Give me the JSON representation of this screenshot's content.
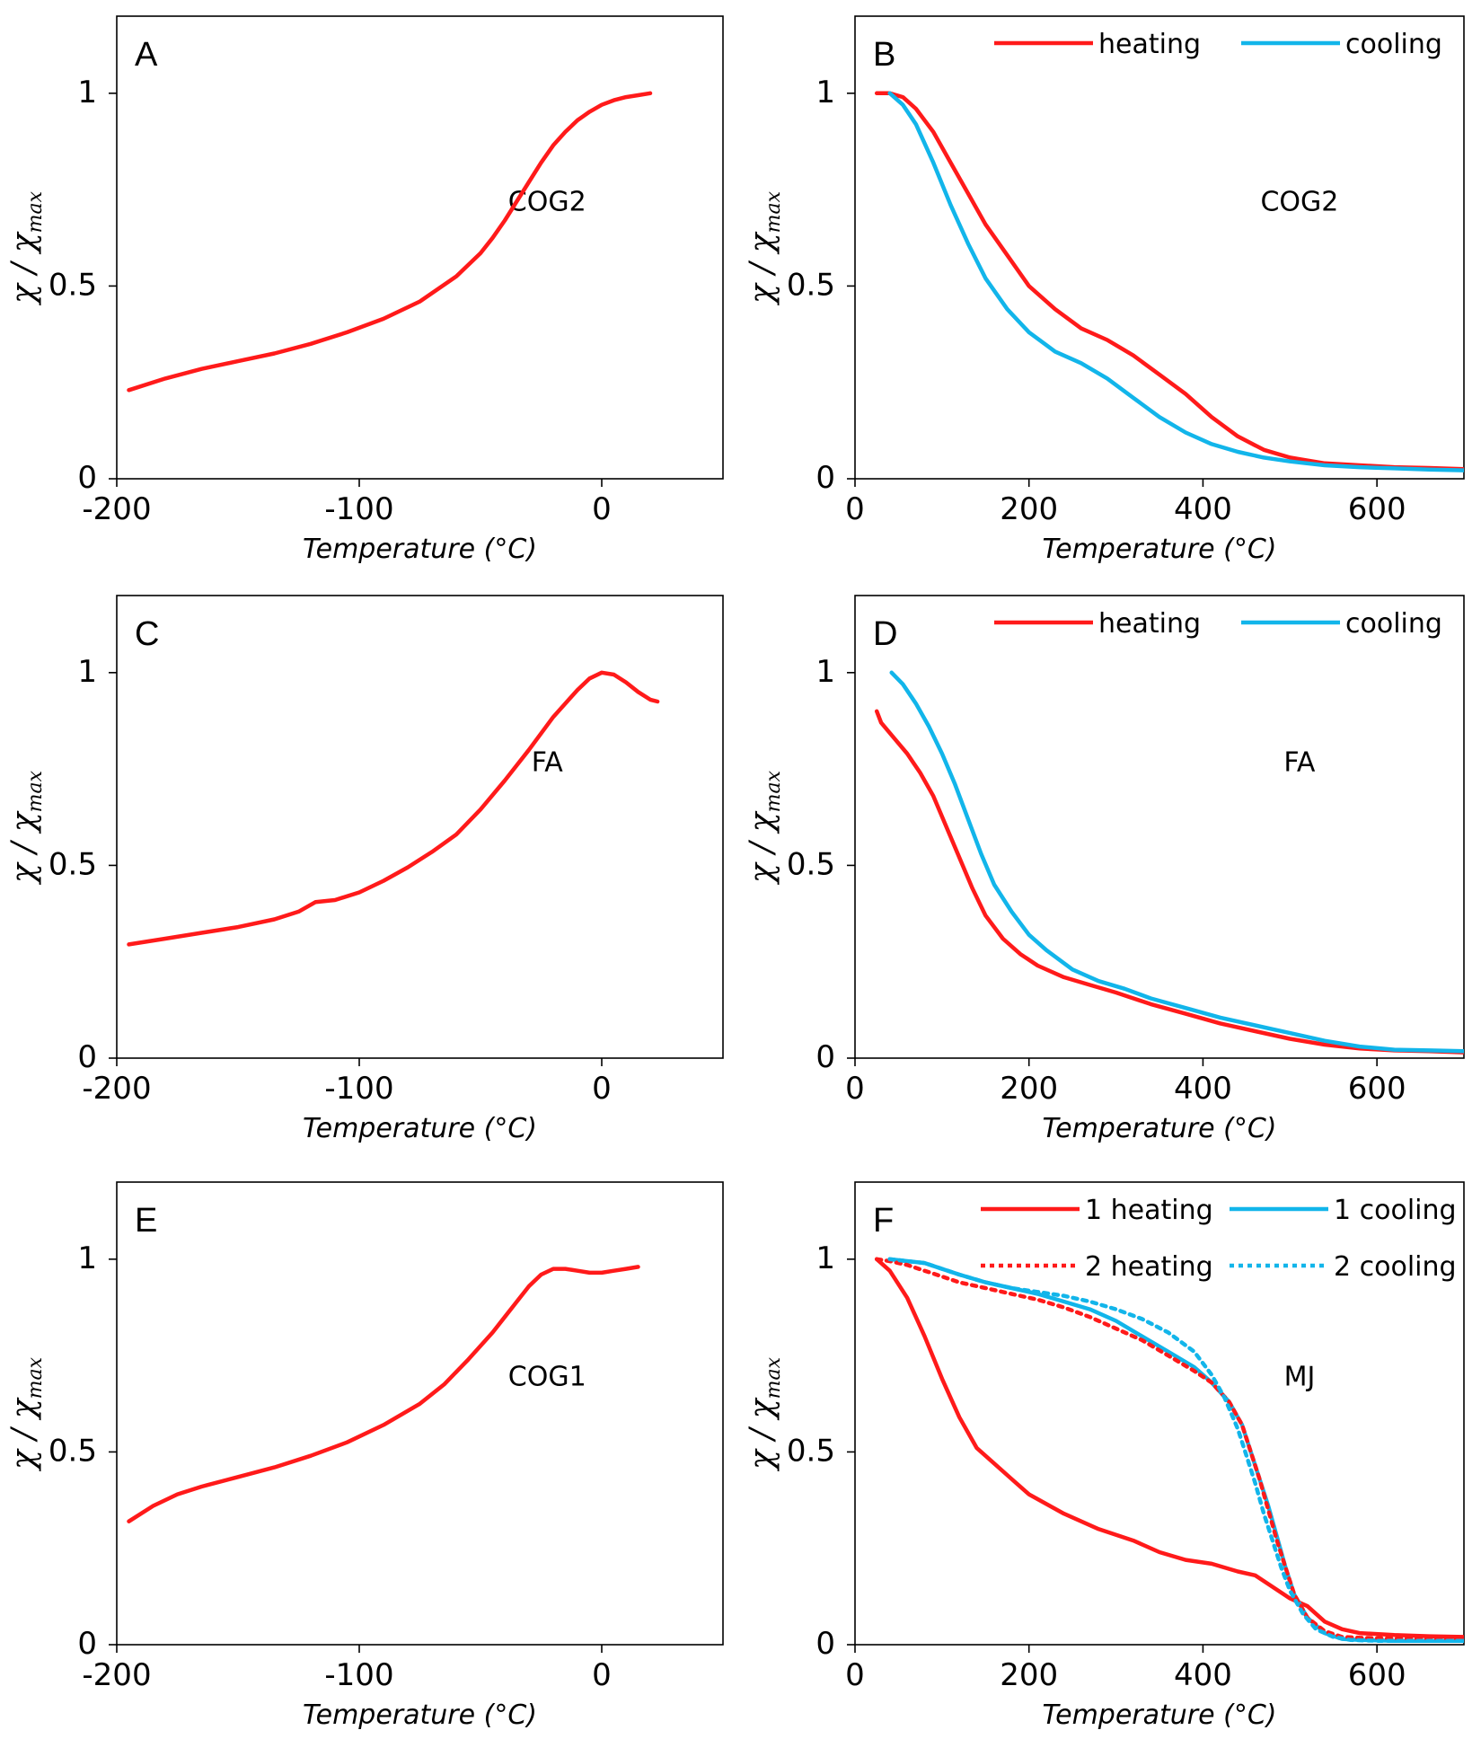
{
  "colors": {
    "heating": "#ff1a1a",
    "cooling": "#12b5ea"
  },
  "chart_data": [
    {
      "id": "A",
      "type": "line",
      "letter": "A",
      "annotation": "COG2",
      "xlabel": "Temperature (°C)",
      "ylabel": "χ / χ",
      "ylabel_sub": "max",
      "xlim": [
        -200,
        50
      ],
      "ylim": [
        0,
        1.2
      ],
      "xticks": [
        -200,
        -100,
        0
      ],
      "xtick_labels": [
        "-200",
        "-100",
        "0"
      ],
      "yticks": [
        0,
        0.5,
        1
      ],
      "ytick_labels": [
        "0",
        "0.5",
        "1"
      ],
      "legend": [],
      "series": [
        {
          "name": "heating",
          "color": "heating",
          "dash": false,
          "x": [
            -195,
            -180,
            -165,
            -150,
            -135,
            -120,
            -105,
            -90,
            -75,
            -60,
            -50,
            -45,
            -40,
            -35,
            -30,
            -25,
            -20,
            -15,
            -10,
            -5,
            0,
            5,
            10,
            15,
            20
          ],
          "y": [
            0.23,
            0.26,
            0.285,
            0.305,
            0.325,
            0.35,
            0.38,
            0.415,
            0.46,
            0.525,
            0.585,
            0.625,
            0.67,
            0.72,
            0.77,
            0.82,
            0.865,
            0.9,
            0.93,
            0.952,
            0.97,
            0.982,
            0.99,
            0.995,
            1.0
          ]
        }
      ]
    },
    {
      "id": "B",
      "type": "line",
      "letter": "B",
      "annotation": "COG2",
      "xlabel": "Temperature (°C)",
      "ylabel": "χ / χ",
      "ylabel_sub": "max",
      "xlim": [
        0,
        700
      ],
      "ylim": [
        0,
        1.2
      ],
      "xticks": [
        0,
        200,
        400,
        600
      ],
      "xtick_labels": [
        "0",
        "200",
        "400",
        "600"
      ],
      "yticks": [
        0,
        0.5,
        1
      ],
      "ytick_labels": [
        "0",
        "0.5",
        "1"
      ],
      "legend": [
        {
          "label": "heating",
          "color": "heating",
          "dash": false
        },
        {
          "label": "cooling",
          "color": "cooling",
          "dash": false
        }
      ],
      "series": [
        {
          "name": "heating",
          "color": "heating",
          "dash": false,
          "x": [
            25,
            40,
            55,
            70,
            90,
            110,
            130,
            150,
            175,
            200,
            230,
            260,
            290,
            320,
            350,
            380,
            410,
            440,
            470,
            500,
            540,
            580,
            620,
            660,
            700
          ],
          "y": [
            1.0,
            1.0,
            0.99,
            0.96,
            0.9,
            0.82,
            0.74,
            0.66,
            0.58,
            0.5,
            0.44,
            0.39,
            0.36,
            0.32,
            0.27,
            0.22,
            0.16,
            0.11,
            0.075,
            0.055,
            0.04,
            0.035,
            0.03,
            0.028,
            0.025
          ]
        },
        {
          "name": "cooling",
          "color": "cooling",
          "dash": false,
          "x": [
            40,
            55,
            70,
            90,
            110,
            130,
            150,
            175,
            200,
            230,
            260,
            290,
            320,
            350,
            380,
            410,
            440,
            470,
            500,
            540,
            580,
            620,
            660,
            700
          ],
          "y": [
            1.0,
            0.97,
            0.92,
            0.82,
            0.71,
            0.61,
            0.52,
            0.44,
            0.38,
            0.33,
            0.3,
            0.26,
            0.21,
            0.16,
            0.12,
            0.09,
            0.07,
            0.055,
            0.045,
            0.035,
            0.03,
            0.027,
            0.024,
            0.022
          ]
        }
      ]
    },
    {
      "id": "C",
      "type": "line",
      "letter": "C",
      "annotation": "FA",
      "xlabel": "Temperature (°C)",
      "ylabel": "χ / χ",
      "ylabel_sub": "max",
      "xlim": [
        -200,
        50
      ],
      "ylim": [
        0,
        1.2
      ],
      "xticks": [
        -200,
        -100,
        0
      ],
      "xtick_labels": [
        "-200",
        "-100",
        "0"
      ],
      "yticks": [
        0,
        0.5,
        1
      ],
      "ytick_labels": [
        "0",
        "0.5",
        "1"
      ],
      "legend": [],
      "series": [
        {
          "name": "heating",
          "color": "heating",
          "dash": false,
          "x": [
            -195,
            -180,
            -165,
            -150,
            -135,
            -125,
            -118,
            -110,
            -100,
            -90,
            -80,
            -70,
            -60,
            -50,
            -40,
            -30,
            -20,
            -10,
            -5,
            0,
            5,
            10,
            15,
            20,
            23
          ],
          "y": [
            0.295,
            0.31,
            0.325,
            0.34,
            0.36,
            0.38,
            0.405,
            0.41,
            0.43,
            0.46,
            0.495,
            0.535,
            0.58,
            0.645,
            0.72,
            0.8,
            0.885,
            0.955,
            0.985,
            1.0,
            0.995,
            0.975,
            0.95,
            0.93,
            0.925
          ]
        }
      ]
    },
    {
      "id": "D",
      "type": "line",
      "letter": "D",
      "annotation": "FA",
      "xlabel": "Temperature (°C)",
      "ylabel": "χ / χ",
      "ylabel_sub": "max",
      "xlim": [
        0,
        700
      ],
      "ylim": [
        0,
        1.2
      ],
      "xticks": [
        0,
        200,
        400,
        600
      ],
      "xtick_labels": [
        "0",
        "200",
        "400",
        "600"
      ],
      "yticks": [
        0,
        0.5,
        1
      ],
      "ytick_labels": [
        "0",
        "0.5",
        "1"
      ],
      "legend": [
        {
          "label": "heating",
          "color": "heating",
          "dash": false
        },
        {
          "label": "cooling",
          "color": "cooling",
          "dash": false
        }
      ],
      "series": [
        {
          "name": "heating",
          "color": "heating",
          "dash": false,
          "x": [
            25,
            30,
            45,
            60,
            75,
            90,
            105,
            120,
            135,
            150,
            170,
            190,
            210,
            240,
            270,
            300,
            340,
            380,
            420,
            460,
            500,
            540,
            580,
            620,
            660,
            700
          ],
          "y": [
            0.9,
            0.87,
            0.83,
            0.79,
            0.74,
            0.68,
            0.6,
            0.52,
            0.44,
            0.37,
            0.31,
            0.27,
            0.24,
            0.21,
            0.19,
            0.17,
            0.14,
            0.115,
            0.09,
            0.07,
            0.05,
            0.035,
            0.025,
            0.02,
            0.018,
            0.015
          ]
        },
        {
          "name": "cooling",
          "color": "cooling",
          "dash": false,
          "x": [
            42,
            55,
            70,
            85,
            100,
            115,
            130,
            145,
            160,
            180,
            200,
            220,
            250,
            280,
            310,
            340,
            380,
            420,
            460,
            500,
            540,
            580,
            620,
            660,
            700
          ],
          "y": [
            1.0,
            0.97,
            0.92,
            0.86,
            0.79,
            0.71,
            0.62,
            0.53,
            0.45,
            0.38,
            0.32,
            0.28,
            0.23,
            0.2,
            0.18,
            0.155,
            0.13,
            0.105,
            0.085,
            0.065,
            0.045,
            0.03,
            0.022,
            0.02,
            0.018
          ]
        }
      ]
    },
    {
      "id": "E",
      "type": "line",
      "letter": "E",
      "annotation": "COG1",
      "xlabel": "Temperature (°C)",
      "ylabel": "χ / χ",
      "ylabel_sub": "max",
      "xlim": [
        -200,
        50
      ],
      "ylim": [
        0,
        1.2
      ],
      "xticks": [
        -200,
        -100,
        0
      ],
      "xtick_labels": [
        "-200",
        "-100",
        "0"
      ],
      "yticks": [
        0,
        0.5,
        1
      ],
      "ytick_labels": [
        "0",
        "0.5",
        "1"
      ],
      "legend": [],
      "series": [
        {
          "name": "heating",
          "color": "heating",
          "dash": false,
          "x": [
            -195,
            -185,
            -175,
            -165,
            -150,
            -135,
            -120,
            -105,
            -90,
            -75,
            -65,
            -55,
            -45,
            -40,
            -35,
            -30,
            -25,
            -20,
            -15,
            -10,
            -5,
            0,
            5,
            10,
            15
          ],
          "y": [
            0.32,
            0.36,
            0.39,
            0.41,
            0.435,
            0.46,
            0.49,
            0.525,
            0.57,
            0.625,
            0.675,
            0.74,
            0.81,
            0.85,
            0.89,
            0.93,
            0.96,
            0.975,
            0.975,
            0.97,
            0.965,
            0.965,
            0.97,
            0.975,
            0.98
          ]
        }
      ]
    },
    {
      "id": "F",
      "type": "line",
      "letter": "F",
      "annotation": "MJ",
      "xlabel": "Temperature (°C)",
      "ylabel": "χ / χ",
      "ylabel_sub": "max",
      "xlim": [
        0,
        700
      ],
      "ylim": [
        0,
        1.2
      ],
      "xticks": [
        0,
        200,
        400,
        600
      ],
      "xtick_labels": [
        "0",
        "200",
        "400",
        "600"
      ],
      "yticks": [
        0,
        0.5,
        1
      ],
      "ytick_labels": [
        "0",
        "0.5",
        "1"
      ],
      "legend": [
        {
          "label": "1 heating",
          "color": "heating",
          "dash": false
        },
        {
          "label": "1 cooling",
          "color": "cooling",
          "dash": false
        },
        {
          "label": "2 heating",
          "color": "heating",
          "dash": true
        },
        {
          "label": "2 cooling",
          "color": "cooling",
          "dash": true
        }
      ],
      "series": [
        {
          "name": "1 heating",
          "color": "heating",
          "dash": false,
          "x": [
            25,
            40,
            60,
            80,
            100,
            120,
            140,
            160,
            180,
            200,
            240,
            280,
            320,
            350,
            380,
            410,
            440,
            460,
            480,
            500,
            520,
            540,
            560,
            580,
            620,
            660,
            700
          ],
          "y": [
            1.0,
            0.97,
            0.9,
            0.8,
            0.69,
            0.59,
            0.51,
            0.47,
            0.43,
            0.39,
            0.34,
            0.3,
            0.27,
            0.24,
            0.22,
            0.21,
            0.19,
            0.18,
            0.15,
            0.12,
            0.1,
            0.06,
            0.04,
            0.03,
            0.025,
            0.022,
            0.02
          ]
        },
        {
          "name": "1 cooling",
          "color": "cooling",
          "dash": false,
          "x": [
            40,
            60,
            80,
            100,
            120,
            150,
            180,
            210,
            240,
            270,
            300,
            330,
            360,
            390,
            410,
            430,
            445,
            455,
            465,
            475,
            485,
            495,
            505,
            520,
            540,
            560,
            580,
            620,
            660,
            700
          ],
          "y": [
            1.0,
            0.995,
            0.99,
            0.975,
            0.96,
            0.94,
            0.925,
            0.91,
            0.89,
            0.87,
            0.84,
            0.8,
            0.76,
            0.72,
            0.68,
            0.63,
            0.57,
            0.5,
            0.43,
            0.36,
            0.28,
            0.2,
            0.13,
            0.07,
            0.03,
            0.015,
            0.012,
            0.01,
            0.01,
            0.01
          ]
        },
        {
          "name": "2 heating",
          "color": "heating",
          "dash": true,
          "x": [
            25,
            40,
            60,
            80,
            100,
            120,
            150,
            180,
            210,
            240,
            270,
            300,
            330,
            360,
            390,
            410,
            430,
            445,
            455,
            465,
            475,
            485,
            495,
            505,
            520,
            540,
            560,
            580,
            620,
            660,
            700
          ],
          "y": [
            1.0,
            0.995,
            0.985,
            0.97,
            0.955,
            0.94,
            0.925,
            0.91,
            0.895,
            0.875,
            0.85,
            0.82,
            0.79,
            0.75,
            0.71,
            0.68,
            0.63,
            0.57,
            0.5,
            0.43,
            0.35,
            0.27,
            0.2,
            0.13,
            0.07,
            0.035,
            0.02,
            0.018,
            0.016,
            0.016,
            0.016
          ]
        },
        {
          "name": "2 cooling",
          "color": "cooling",
          "dash": true,
          "x": [
            40,
            60,
            80,
            100,
            120,
            150,
            180,
            210,
            240,
            270,
            300,
            330,
            360,
            390,
            410,
            425,
            440,
            450,
            460,
            470,
            480,
            490,
            500,
            515,
            530,
            550,
            570,
            600,
            650,
            700
          ],
          "y": [
            1.0,
            0.995,
            0.99,
            0.975,
            0.96,
            0.94,
            0.925,
            0.915,
            0.905,
            0.89,
            0.87,
            0.845,
            0.81,
            0.76,
            0.7,
            0.64,
            0.56,
            0.49,
            0.42,
            0.34,
            0.27,
            0.2,
            0.14,
            0.08,
            0.04,
            0.02,
            0.012,
            0.01,
            0.01,
            0.01
          ]
        }
      ]
    }
  ]
}
